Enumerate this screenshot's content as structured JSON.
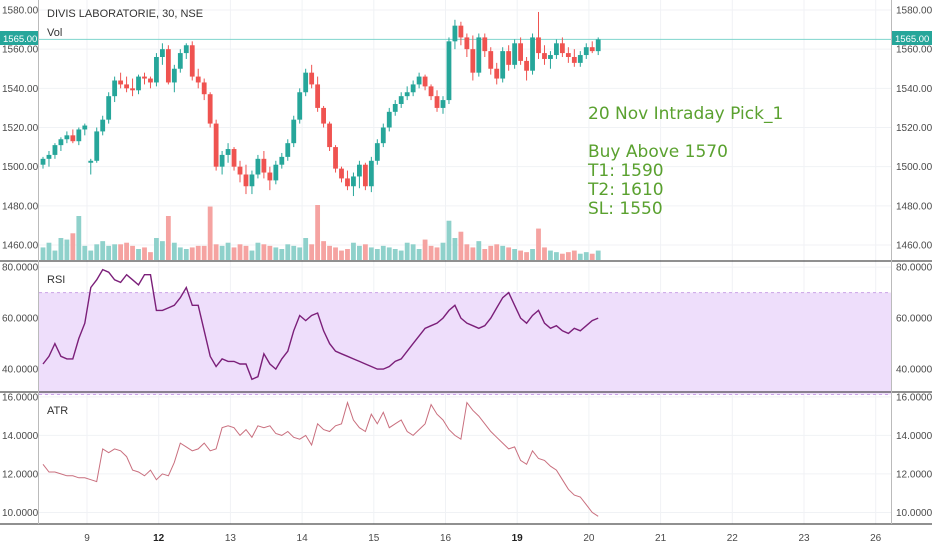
{
  "header": {
    "title": "DIVIS LABORATORIE, 30, NSE",
    "vol_label": "Vol"
  },
  "price_tag": "1565.00",
  "note": {
    "title": "20 Nov Intraday Pick_1",
    "lines": [
      "Buy Above 1570",
      "T1: 1590",
      "T2: 1610",
      "SL: 1550"
    ]
  },
  "colors": {
    "up": "#26a69a",
    "down": "#ef5350",
    "rsi": "#7b1f79",
    "atr": "#c96f7e",
    "band": "#eedefb",
    "ref": "#7fd4cd",
    "note": "#5aa12f"
  },
  "chart_data": [
    {
      "type": "candlestick",
      "title": "DIVIS LABORATORIE, 30, NSE",
      "ylim": [
        1455,
        1585
      ],
      "y_ticks": [
        "1580.00",
        "1560.00",
        "1540.00",
        "1520.00",
        "1500.00",
        "1480.00",
        "1460.00"
      ],
      "x_ticks": [
        {
          "x": 0.5,
          "label": "9"
        },
        {
          "x": 1.5,
          "label": "12"
        },
        {
          "x": 2.5,
          "label": "13"
        },
        {
          "x": 3.5,
          "label": "14"
        },
        {
          "x": 4.5,
          "label": "15"
        },
        {
          "x": 5.5,
          "label": "16"
        },
        {
          "x": 6.5,
          "label": "19"
        },
        {
          "x": 7.5,
          "label": "20"
        },
        {
          "x": 8.5,
          "label": "21"
        },
        {
          "x": 9.5,
          "label": "22"
        },
        {
          "x": 10.5,
          "label": "23"
        },
        {
          "x": 11.5,
          "label": "26"
        }
      ],
      "bold_ticks": [
        "12",
        "19"
      ],
      "reference_line": 1565,
      "candles": [
        [
          1501,
          1505,
          1499,
          1504
        ],
        [
          1504,
          1508,
          1500,
          1506
        ],
        [
          1506,
          1512,
          1504,
          1511
        ],
        [
          1511,
          1515,
          1508,
          1514
        ],
        [
          1514,
          1518,
          1512,
          1516
        ],
        [
          1516,
          1519,
          1512,
          1513
        ],
        [
          1513,
          1520,
          1511,
          1519
        ],
        [
          1519,
          1522,
          1516,
          1521
        ],
        [
          1502,
          1504,
          1496,
          1503
        ],
        [
          1503,
          1520,
          1502,
          1518
        ],
        [
          1518,
          1526,
          1516,
          1524
        ],
        [
          1524,
          1538,
          1522,
          1536
        ],
        [
          1536,
          1546,
          1533,
          1544
        ],
        [
          1544,
          1548,
          1540,
          1542
        ],
        [
          1542,
          1546,
          1538,
          1540
        ],
        [
          1540,
          1545,
          1536,
          1539
        ],
        [
          1539,
          1547,
          1537,
          1546
        ],
        [
          1546,
          1548,
          1542,
          1545
        ],
        [
          1545,
          1546,
          1540,
          1543
        ],
        [
          1543,
          1558,
          1541,
          1556
        ],
        [
          1556,
          1563,
          1552,
          1560
        ],
        [
          1560,
          1562,
          1542,
          1543
        ],
        [
          1543,
          1552,
          1538,
          1550
        ],
        [
          1550,
          1560,
          1548,
          1558
        ],
        [
          1558,
          1563,
          1555,
          1562
        ],
        [
          1562,
          1564,
          1544,
          1546
        ],
        [
          1546,
          1550,
          1540,
          1543
        ],
        [
          1543,
          1545,
          1534,
          1537
        ],
        [
          1537,
          1538,
          1520,
          1522
        ],
        [
          1522,
          1524,
          1498,
          1500
        ],
        [
          1500,
          1508,
          1496,
          1506
        ],
        [
          1506,
          1512,
          1502,
          1509
        ],
        [
          1509,
          1510,
          1498,
          1500
        ],
        [
          1500,
          1503,
          1492,
          1496
        ],
        [
          1496,
          1501,
          1486,
          1490
        ],
        [
          1490,
          1498,
          1486,
          1496
        ],
        [
          1496,
          1506,
          1494,
          1504
        ],
        [
          1504,
          1508,
          1494,
          1497
        ],
        [
          1497,
          1500,
          1488,
          1493
        ],
        [
          1493,
          1503,
          1491,
          1501
        ],
        [
          1501,
          1507,
          1499,
          1505
        ],
        [
          1505,
          1514,
          1503,
          1512
        ],
        [
          1512,
          1526,
          1510,
          1524
        ],
        [
          1524,
          1540,
          1522,
          1538
        ],
        [
          1538,
          1550,
          1536,
          1548
        ],
        [
          1548,
          1552,
          1540,
          1542
        ],
        [
          1542,
          1546,
          1528,
          1530
        ],
        [
          1530,
          1531,
          1520,
          1522
        ],
        [
          1522,
          1523,
          1508,
          1510
        ],
        [
          1510,
          1511,
          1497,
          1499
        ],
        [
          1499,
          1500,
          1492,
          1494
        ],
        [
          1494,
          1498,
          1488,
          1490
        ],
        [
          1490,
          1497,
          1485,
          1495
        ],
        [
          1495,
          1503,
          1489,
          1501
        ],
        [
          1501,
          1502,
          1488,
          1490
        ],
        [
          1490,
          1505,
          1487,
          1503
        ],
        [
          1503,
          1514,
          1501,
          1512
        ],
        [
          1512,
          1522,
          1510,
          1520
        ],
        [
          1520,
          1530,
          1518,
          1528
        ],
        [
          1528,
          1534,
          1526,
          1532
        ],
        [
          1532,
          1538,
          1530,
          1536
        ],
        [
          1536,
          1541,
          1534,
          1538
        ],
        [
          1538,
          1544,
          1536,
          1542
        ],
        [
          1542,
          1548,
          1540,
          1546
        ],
        [
          1546,
          1547,
          1539,
          1541
        ],
        [
          1541,
          1542,
          1534,
          1536
        ],
        [
          1536,
          1539,
          1528,
          1530
        ],
        [
          1530,
          1536,
          1527,
          1534
        ],
        [
          1534,
          1566,
          1532,
          1564
        ],
        [
          1564,
          1575,
          1560,
          1572
        ],
        [
          1572,
          1574,
          1562,
          1566
        ],
        [
          1566,
          1568,
          1556,
          1560
        ],
        [
          1560,
          1567,
          1544,
          1548
        ],
        [
          1548,
          1568,
          1546,
          1566
        ],
        [
          1566,
          1568,
          1556,
          1559
        ],
        [
          1559,
          1561,
          1547,
          1550
        ],
        [
          1550,
          1553,
          1542,
          1545
        ],
        [
          1545,
          1561,
          1543,
          1559
        ],
        [
          1559,
          1562,
          1549,
          1552
        ],
        [
          1552,
          1565,
          1550,
          1563
        ],
        [
          1563,
          1566,
          1552,
          1554
        ],
        [
          1554,
          1556,
          1544,
          1549
        ],
        [
          1549,
          1568,
          1547,
          1566
        ],
        [
          1566,
          1579,
          1555,
          1558
        ],
        [
          1558,
          1562,
          1552,
          1555
        ],
        [
          1555,
          1559,
          1550,
          1557
        ],
        [
          1557,
          1565,
          1555,
          1563
        ],
        [
          1563,
          1566,
          1556,
          1558
        ],
        [
          1558,
          1561,
          1553,
          1556
        ],
        [
          1556,
          1560,
          1551,
          1553
        ],
        [
          1553,
          1559,
          1551,
          1557
        ],
        [
          1557,
          1563,
          1555,
          1561
        ],
        [
          1561,
          1564,
          1558,
          1559
        ],
        [
          1559,
          1566,
          1557,
          1565
        ]
      ],
      "volume": [
        8,
        11,
        6,
        14,
        13,
        17,
        28,
        9,
        6,
        10,
        12,
        9,
        10,
        10,
        11,
        9,
        7,
        8,
        5,
        14,
        12,
        28,
        11,
        8,
        7,
        8,
        9,
        9,
        34,
        10,
        9,
        11,
        8,
        10,
        9,
        6,
        11,
        10,
        9,
        8,
        7,
        10,
        9,
        8,
        14,
        10,
        35,
        12,
        9,
        8,
        6,
        7,
        11,
        9,
        10,
        8,
        7,
        9,
        8,
        7,
        6,
        11,
        10,
        7,
        13,
        9,
        8,
        11,
        25,
        14,
        18,
        10,
        8,
        12,
        7,
        9,
        10,
        9,
        8,
        7,
        6,
        5,
        7,
        20,
        8,
        6,
        5,
        4,
        5,
        6,
        4,
        5,
        4,
        6
      ]
    },
    {
      "type": "line",
      "name": "RSI",
      "ylim": [
        31,
        82
      ],
      "y_ticks": [
        "80.0000",
        "60.0000",
        "40.0000"
      ],
      "band": [
        30,
        70
      ],
      "values": [
        42,
        45,
        50,
        45,
        44,
        44,
        52,
        58,
        72,
        75,
        79,
        78,
        75,
        74,
        77,
        75,
        73,
        77,
        77,
        63,
        63,
        64,
        65,
        68,
        72,
        65,
        65,
        55,
        45,
        41,
        44,
        43,
        43,
        42,
        42,
        36,
        37,
        46,
        42,
        40,
        44,
        47,
        55,
        61,
        59,
        61,
        62,
        55,
        50,
        47,
        46,
        45,
        44,
        43,
        42,
        41,
        40,
        40,
        41,
        43,
        44,
        47,
        50,
        53,
        56,
        57,
        58,
        60,
        63,
        65,
        60,
        58,
        57,
        56,
        57,
        60,
        64,
        68,
        70,
        65,
        60,
        58,
        61,
        63,
        58,
        56,
        57,
        55,
        54,
        56,
        55,
        57,
        59,
        60
      ]
    },
    {
      "type": "line",
      "name": "ATR",
      "ylim": [
        9.4,
        16.2
      ],
      "y_ticks": [
        "16.0000",
        "14.0000",
        "12.0000",
        "10.0000"
      ],
      "values": [
        12.5,
        12.1,
        12.1,
        12.0,
        11.9,
        11.9,
        11.8,
        11.8,
        11.7,
        11.6,
        13.3,
        13.1,
        13.3,
        13.2,
        12.9,
        12.2,
        12.1,
        11.9,
        12.2,
        11.7,
        12.0,
        11.9,
        12.6,
        13.6,
        13.4,
        13.2,
        13.3,
        13.6,
        13.2,
        13.3,
        14.4,
        14.5,
        14.4,
        14.0,
        14.3,
        13.9,
        14.5,
        14.4,
        14.5,
        14.1,
        14.0,
        14.2,
        13.9,
        13.8,
        14.0,
        13.5,
        14.6,
        14.3,
        14.2,
        14.5,
        14.6,
        15.7,
        14.8,
        14.4,
        14.2,
        15.1,
        14.6,
        15.2,
        14.4,
        14.6,
        14.8,
        14.2,
        14.0,
        14.3,
        14.6,
        15.6,
        15.1,
        14.8,
        14.3,
        14.0,
        13.8,
        15.7,
        15.3,
        15.0,
        14.6,
        14.2,
        13.9,
        13.6,
        13.3,
        13.4,
        12.7,
        12.5,
        13.2,
        12.8,
        12.7,
        12.4,
        12.2,
        11.7,
        11.2,
        10.9,
        10.8,
        10.4,
        10.0,
        9.8
      ]
    }
  ]
}
